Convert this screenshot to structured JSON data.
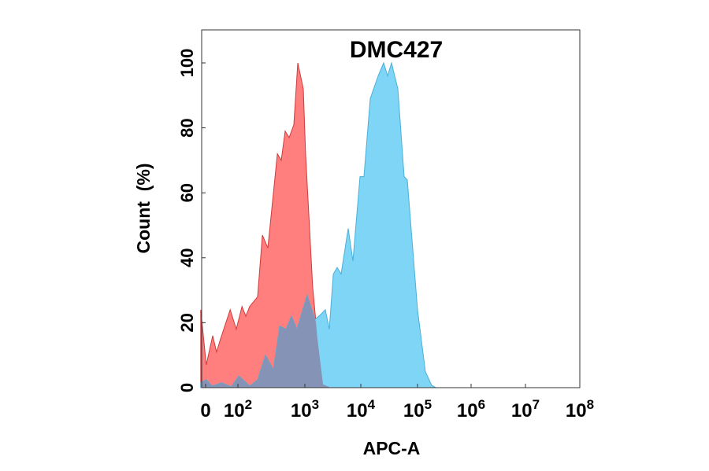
{
  "chart_data": {
    "type": "area",
    "title": "DMC427",
    "xlabel": "APC-A",
    "ylabel": "Count  (%)",
    "x_scale": "logicle",
    "xlim": [
      -15,
      100000000
    ],
    "ylim": [
      0,
      110
    ],
    "x_ticks": [
      {
        "value": 0,
        "base": "0",
        "exp": ""
      },
      {
        "value": 100,
        "base": "10",
        "exp": "2"
      },
      {
        "value": 1000,
        "base": "10",
        "exp": "3"
      },
      {
        "value": 10000,
        "base": "10",
        "exp": "4"
      },
      {
        "value": 100000,
        "base": "10",
        "exp": "5"
      },
      {
        "value": 1000000,
        "base": "10",
        "exp": "6"
      },
      {
        "value": 10000000,
        "base": "10",
        "exp": "7"
      },
      {
        "value": 100000000,
        "base": "10",
        "exp": "8"
      }
    ],
    "y_ticks": [
      0,
      20,
      40,
      60,
      80,
      100
    ],
    "grid": false,
    "legend": "none",
    "series": [
      {
        "color": "#ff7f7f",
        "stroke": "#d03a3a",
        "points": [
          [
            -15,
            24
          ],
          [
            2,
            7
          ],
          [
            22,
            16
          ],
          [
            34,
            11
          ],
          [
            46,
            15
          ],
          [
            76,
            24
          ],
          [
            95,
            18
          ],
          [
            115,
            25
          ],
          [
            131,
            22
          ],
          [
            150,
            25
          ],
          [
            197,
            28
          ],
          [
            232,
            47
          ],
          [
            280,
            43
          ],
          [
            339,
            60
          ],
          [
            388,
            72
          ],
          [
            444,
            70
          ],
          [
            508,
            79
          ],
          [
            582,
            77
          ],
          [
            685,
            81
          ],
          [
            784,
            100
          ],
          [
            946,
            92
          ],
          [
            1030,
            72
          ],
          [
            1380,
            31
          ],
          [
            1680,
            15
          ],
          [
            2110,
            1
          ],
          [
            2900,
            0
          ]
        ]
      },
      {
        "color": "#7fd5f5",
        "stroke": "#4ab0d8",
        "points": [
          [
            -15,
            1.5
          ],
          [
            2,
            2.5
          ],
          [
            20,
            0.5
          ],
          [
            50,
            1.5
          ],
          [
            80,
            0.3
          ],
          [
            103,
            3.6
          ],
          [
            150,
            0.5
          ],
          [
            197,
            2.4
          ],
          [
            258,
            10
          ],
          [
            339,
            5.6
          ],
          [
            421,
            19
          ],
          [
            522,
            18
          ],
          [
            631,
            22
          ],
          [
            762,
            18
          ],
          [
            1100,
            28.5
          ],
          [
            1520,
            21
          ],
          [
            1910,
            22.5
          ],
          [
            2320,
            24
          ],
          [
            2730,
            18
          ],
          [
            3220,
            35
          ],
          [
            3780,
            37
          ],
          [
            4440,
            35
          ],
          [
            5950,
            49
          ],
          [
            7230,
            39
          ],
          [
            9680,
            65
          ],
          [
            11370,
            65
          ],
          [
            14680,
            89
          ],
          [
            20200,
            96
          ],
          [
            25300,
            100
          ],
          [
            29700,
            96
          ],
          [
            34800,
            100
          ],
          [
            45000,
            92
          ],
          [
            58100,
            65
          ],
          [
            65900,
            64
          ],
          [
            100000,
            24
          ],
          [
            140000,
            5
          ],
          [
            184000,
            0.7
          ],
          [
            220000,
            0
          ]
        ]
      }
    ],
    "overlap_color": "#8594b6"
  }
}
